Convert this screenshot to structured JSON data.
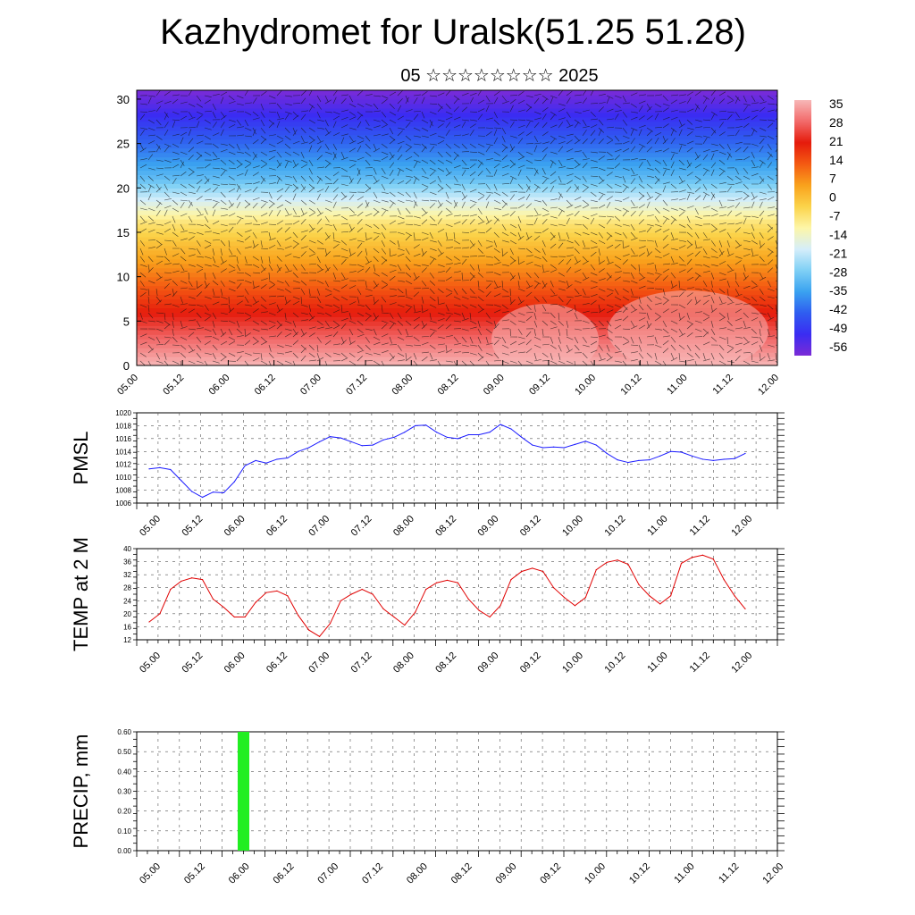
{
  "title": "Kazhydromet for Uralsk(51.25 51.28)",
  "subtitle": "05 ☆☆☆☆☆☆☆☆ 2025",
  "chart_data": [
    {
      "type": "heatmap",
      "name": "vertical-cross-section",
      "x_tick_labels": [
        "05.00",
        "05.12",
        "06.00",
        "06.12",
        "07.00",
        "07.12",
        "08.00",
        "08.12",
        "09.00",
        "09.12",
        "10.00",
        "10.12",
        "11.00",
        "11.12",
        "12.00"
      ],
      "y_ticks": [
        0,
        5,
        10,
        15,
        20,
        25,
        30
      ],
      "ylim": [
        0,
        31
      ],
      "colorbar_labels": [
        "35",
        "28",
        "21",
        "14",
        "7",
        "0",
        "-7",
        "-14",
        "-21",
        "-28",
        "-35",
        "-42",
        "-49",
        "-56"
      ],
      "colorbar_range": [
        -63,
        42
      ],
      "colormap": [
        "#7b2bd6",
        "#3a2cf2",
        "#2f5df0",
        "#3aa2f0",
        "#7fd0f5",
        "#d5eefa",
        "#fdf6a8",
        "#fbd34a",
        "#f9a21c",
        "#f45a12",
        "#e51b0c",
        "#f26a6a",
        "#f7b7b7"
      ],
      "vectors": true
    },
    {
      "type": "line",
      "name": "pmsl",
      "ylabel": "PMSL",
      "x_tick_labels": [
        "05.00",
        "05.12",
        "06.00",
        "06.12",
        "07.00",
        "07.12",
        "08.00",
        "08.12",
        "09.00",
        "09.12",
        "10.00",
        "10.12",
        "11.00",
        "11.12",
        "12.00"
      ],
      "ylim": [
        1006,
        1020
      ],
      "y_ticks": [
        1006,
        1008,
        1010,
        1012,
        1014,
        1016,
        1018,
        1020
      ],
      "color": "#1a1aff",
      "values": [
        1011.3,
        1011.5,
        1011.2,
        1009.5,
        1007.8,
        1006.9,
        1007.7,
        1007.6,
        1009.3,
        1011.8,
        1012.6,
        1012.2,
        1012.8,
        1013.0,
        1014.0,
        1014.6,
        1015.5,
        1016.3,
        1016.1,
        1015.5,
        1014.9,
        1015.0,
        1015.8,
        1016.2,
        1017.0,
        1018.0,
        1018.1,
        1017.0,
        1016.2,
        1016.0,
        1016.6,
        1016.6,
        1017.0,
        1018.2,
        1017.5,
        1016.2,
        1015.0,
        1014.6,
        1014.7,
        1014.6,
        1015.1,
        1015.6,
        1015.0,
        1013.7,
        1012.7,
        1012.3,
        1012.6,
        1012.7,
        1013.3,
        1014.0,
        1013.9,
        1013.3,
        1012.8,
        1012.6,
        1012.8,
        1012.9,
        1013.7
      ]
    },
    {
      "type": "line",
      "name": "temp-2m",
      "ylabel": "TEMP at 2 M",
      "x_tick_labels": [
        "05.00",
        "05.12",
        "06.00",
        "06.12",
        "07.00",
        "07.12",
        "08.00",
        "08.12",
        "09.00",
        "09.12",
        "10.00",
        "10.12",
        "11.00",
        "11.12",
        "12.00"
      ],
      "ylim": [
        12,
        40
      ],
      "y_ticks": [
        12,
        16,
        20,
        24,
        28,
        32,
        36,
        40
      ],
      "color": "#e00000",
      "values": [
        17.5,
        20.0,
        27.5,
        30.0,
        31.0,
        30.5,
        24.5,
        22.0,
        19.0,
        19.0,
        23.5,
        26.5,
        27.0,
        25.5,
        19.5,
        15.0,
        13.0,
        17.0,
        24.0,
        26.0,
        27.5,
        26.0,
        21.5,
        19.0,
        16.5,
        20.5,
        27.5,
        29.5,
        30.3,
        29.5,
        24.5,
        21.0,
        19.0,
        22.5,
        30.5,
        33.0,
        34.0,
        33.0,
        28.0,
        25.0,
        22.5,
        25.0,
        33.5,
        35.8,
        36.5,
        35.2,
        29.0,
        25.5,
        23.0,
        25.5,
        35.5,
        37.3,
        38.0,
        36.8,
        30.5,
        25.5,
        21.5
      ]
    },
    {
      "type": "bar",
      "name": "precip",
      "ylabel": "PRECIP, mm",
      "x_tick_labels": [
        "05.00",
        "05.12",
        "06.00",
        "06.12",
        "07.00",
        "07.12",
        "08.00",
        "08.12",
        "09.00",
        "09.12",
        "10.00",
        "10.12",
        "11.00",
        "11.12",
        "12.00"
      ],
      "ylim": [
        0,
        0.6
      ],
      "y_tick_labels": [
        "0.00",
        "0.10",
        "0.20",
        "0.30",
        "0.40",
        "0.50",
        "0.60"
      ],
      "y_ticks": [
        0,
        0.1,
        0.2,
        0.3,
        0.4,
        0.5,
        0.6
      ],
      "color": "#22ee22",
      "bars": [
        {
          "x": 6.6,
          "value": 0.6
        }
      ]
    }
  ]
}
